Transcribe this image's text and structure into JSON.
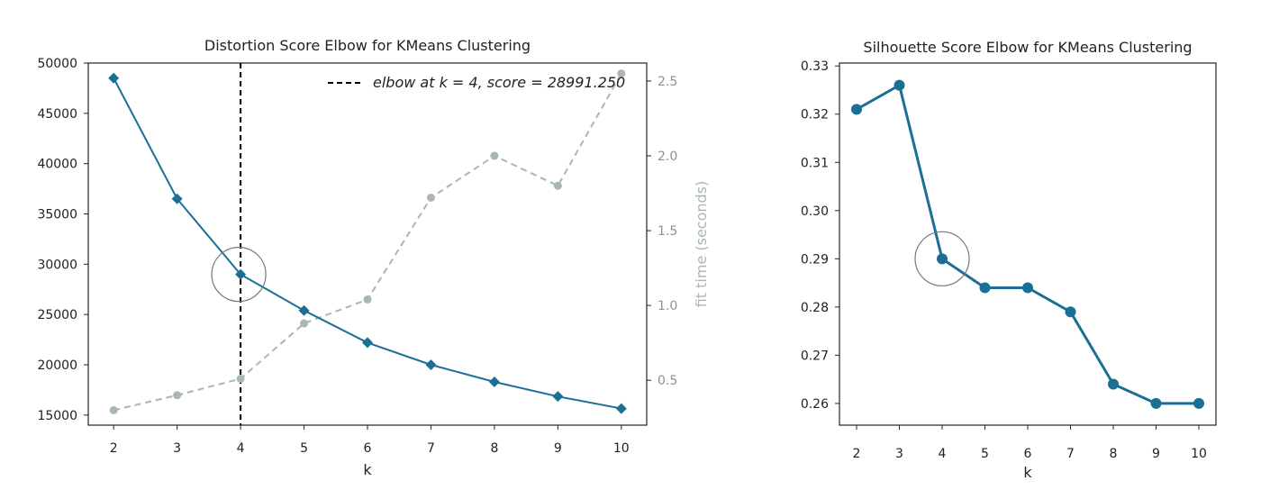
{
  "chart_data": [
    {
      "type": "line",
      "title": "Distortion Score Elbow for KMeans Clustering",
      "xlabel": "k",
      "ylabel": "",
      "y2label": "fit time (seconds)",
      "x": [
        2,
        3,
        4,
        5,
        6,
        7,
        8,
        9,
        10
      ],
      "xlim": [
        1.6,
        10.4
      ],
      "ylim": [
        14000,
        50000
      ],
      "y2lim": [
        0.2,
        2.62
      ],
      "yticks": [
        15000,
        20000,
        25000,
        30000,
        35000,
        40000,
        45000,
        50000
      ],
      "y2ticks": [
        0.5,
        1.0,
        1.5,
        2.0,
        2.5
      ],
      "grid": false,
      "legend_position": "top-right",
      "series": [
        {
          "axis": "left",
          "color": "#1b6f94",
          "marker": "diamond",
          "values": [
            48500,
            36500,
            28991.25,
            25400,
            22200,
            20000,
            18300,
            16850,
            15650
          ]
        },
        {
          "axis": "right",
          "color": "#a8b8ae",
          "marker": "circle",
          "linestyle": "dashed",
          "values": [
            0.3,
            0.4,
            0.51,
            0.88,
            1.04,
            1.72,
            2.0,
            1.8,
            2.55
          ]
        }
      ],
      "elbow": {
        "k": 4,
        "score": 28991.25,
        "legend_label": "elbow at k = 4, score = 28991.250",
        "color": "#000000",
        "linestyle": "dashed"
      }
    },
    {
      "type": "line",
      "title": "Silhouette Score Elbow for KMeans Clustering",
      "xlabel": "k",
      "ylabel": "",
      "x": [
        2,
        3,
        4,
        5,
        6,
        7,
        8,
        9,
        10
      ],
      "xlim": [
        1.6,
        10.4
      ],
      "ylim": [
        0.2555,
        0.3306
      ],
      "yticks": [
        0.26,
        0.27,
        0.28,
        0.29,
        0.3,
        0.31,
        0.32,
        0.33
      ],
      "grid": false,
      "series": [
        {
          "color": "#1b6f94",
          "marker": "circle",
          "values": [
            0.321,
            0.326,
            0.29,
            0.284,
            0.284,
            0.279,
            0.264,
            0.26,
            0.26
          ]
        }
      ],
      "highlight": {
        "k": 4,
        "value": 0.29
      }
    }
  ]
}
